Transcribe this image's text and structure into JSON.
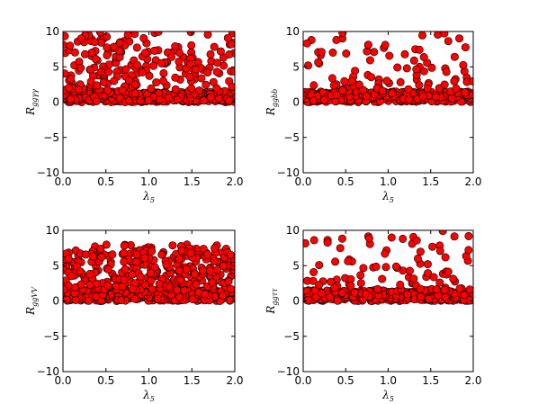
{
  "chart_data": [
    {
      "type": "scatter",
      "panel": "top-left",
      "xlabel": "λ5",
      "xlabel_main": "λ",
      "xlabel_sub": "5",
      "ylabel": "Rggγγ",
      "ylabel_main": "R",
      "ylabel_sub": "ggγγ",
      "xlim": [
        0.0,
        2.0
      ],
      "ylim": [
        -10,
        10
      ],
      "xticks": [
        "0.0",
        "0.5",
        "1.0",
        "1.5",
        "2.0"
      ],
      "yticks": [
        "10",
        "5",
        "0",
        "−5",
        "−10"
      ],
      "grid": false,
      "marker_color": "#ff0000",
      "y_distribution": {
        "dense_band": [
          0.0,
          1.5
        ],
        "scatter_band": [
          0.0,
          10.0
        ],
        "upper_density": "medium"
      },
      "x_range": [
        0.0,
        2.0
      ]
    },
    {
      "type": "scatter",
      "panel": "top-right",
      "xlabel": "λ5",
      "xlabel_main": "λ",
      "xlabel_sub": "5",
      "ylabel": "Rggbb",
      "ylabel_main": "R",
      "ylabel_sub": "ggbb",
      "xlim": [
        0.0,
        2.0
      ],
      "ylim": [
        -10,
        10
      ],
      "xticks": [
        "0.0",
        "0.5",
        "1.0",
        "1.5",
        "2.0"
      ],
      "yticks": [
        "10",
        "5",
        "0",
        "−5",
        "−10"
      ],
      "grid": false,
      "marker_color": "#ff0000",
      "y_distribution": {
        "dense_band": [
          0.0,
          1.5
        ],
        "scatter_band": [
          0.0,
          10.0
        ],
        "upper_density": "low"
      },
      "x_range": [
        0.0,
        2.0
      ]
    },
    {
      "type": "scatter",
      "panel": "bottom-left",
      "xlabel": "λ5",
      "xlabel_main": "λ",
      "xlabel_sub": "5",
      "ylabel": "RggVV",
      "ylabel_main": "R",
      "ylabel_sub": "ggVV",
      "xlim": [
        0.0,
        2.0
      ],
      "ylim": [
        -10,
        10
      ],
      "xticks": [
        "0.0",
        "0.5",
        "1.0",
        "1.5",
        "2.0"
      ],
      "yticks": [
        "10",
        "5",
        "0",
        "−5",
        "−10"
      ],
      "grid": false,
      "marker_color": "#ff0000",
      "y_distribution": {
        "dense_band": [
          0.0,
          1.5
        ],
        "scatter_band": [
          0.0,
          8.0
        ],
        "upper_density": "high"
      },
      "x_range": [
        0.0,
        2.0
      ]
    },
    {
      "type": "scatter",
      "panel": "bottom-right",
      "xlabel": "λ5",
      "xlabel_main": "λ",
      "xlabel_sub": "5",
      "ylabel": "Rggττ",
      "ylabel_main": "R",
      "ylabel_sub": "ggττ",
      "xlim": [
        0.0,
        2.0
      ],
      "ylim": [
        -10,
        10
      ],
      "xticks": [
        "0.0",
        "0.5",
        "1.0",
        "1.5",
        "2.0"
      ],
      "yticks": [
        "10",
        "5",
        "0",
        "−5",
        "−10"
      ],
      "grid": false,
      "marker_color": "#ff0000",
      "y_distribution": {
        "dense_band": [
          0.0,
          1.5
        ],
        "scatter_band": [
          0.0,
          10.0
        ],
        "upper_density": "low"
      },
      "x_range": [
        0.0,
        2.0
      ]
    }
  ]
}
